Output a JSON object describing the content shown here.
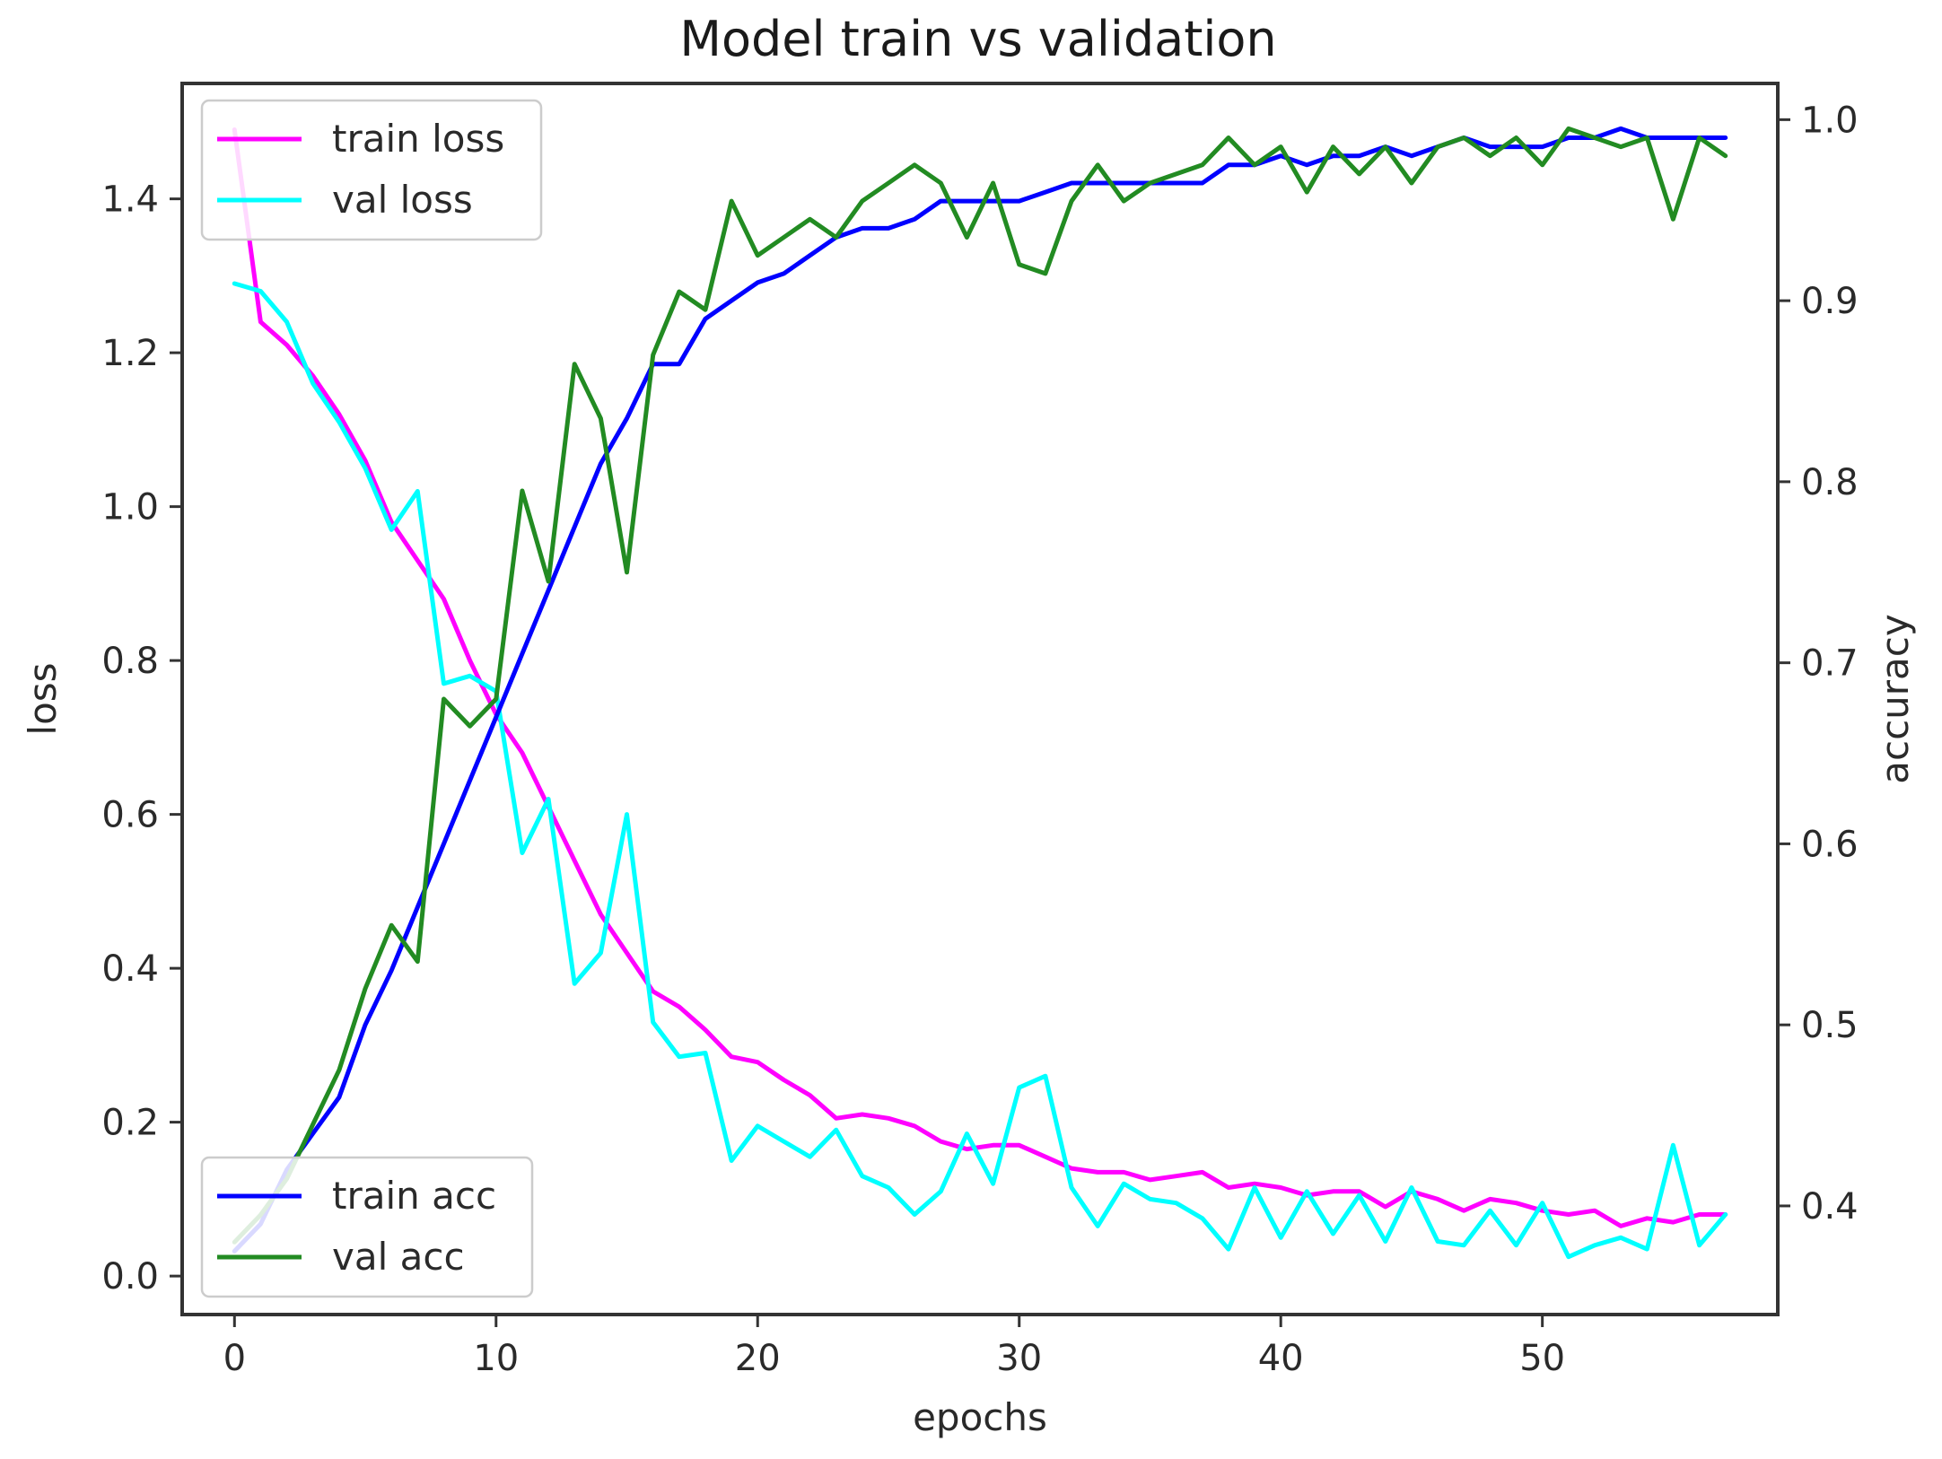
{
  "chart_data": {
    "type": "line",
    "title": "Model train vs validation",
    "xlabel": "epochs",
    "ylabel_left": "loss",
    "ylabel_right": "accuracy",
    "xlim": [
      -2,
      59
    ],
    "ylim_left": [
      -0.05,
      1.55
    ],
    "ylim_right": [
      0.34,
      1.02
    ],
    "x_ticks": [
      0,
      10,
      20,
      30,
      40,
      50
    ],
    "y_left_ticks": [
      0.0,
      0.2,
      0.4,
      0.6,
      0.8,
      1.0,
      1.2,
      1.4
    ],
    "y_right_ticks": [
      0.4,
      0.5,
      0.6,
      0.7,
      0.8,
      0.9,
      1.0
    ],
    "grid": false,
    "legends": [
      {
        "placement": "top-left",
        "entries": [
          "train loss",
          "val loss"
        ]
      },
      {
        "placement": "bottom-left",
        "entries": [
          "train acc",
          "val acc"
        ]
      }
    ],
    "x": [
      0,
      1,
      2,
      3,
      4,
      5,
      6,
      7,
      8,
      9,
      10,
      11,
      12,
      13,
      14,
      15,
      16,
      17,
      18,
      19,
      20,
      21,
      22,
      23,
      24,
      25,
      26,
      27,
      28,
      29,
      30,
      31,
      32,
      33,
      34,
      35,
      36,
      37,
      38,
      39,
      40,
      41,
      42,
      43,
      44,
      45,
      46,
      47,
      48,
      49,
      50,
      51,
      52,
      53,
      54,
      55,
      56,
      57
    ],
    "series": [
      {
        "name": "train loss",
        "axis": "left",
        "color": "#ff00ff",
        "values": [
          1.49,
          1.24,
          1.21,
          1.17,
          1.12,
          1.06,
          0.98,
          0.93,
          0.88,
          0.8,
          0.73,
          0.68,
          0.61,
          0.54,
          0.47,
          0.42,
          0.37,
          0.35,
          0.32,
          0.285,
          0.278,
          0.255,
          0.235,
          0.205,
          0.21,
          0.205,
          0.195,
          0.175,
          0.165,
          0.17,
          0.17,
          0.155,
          0.14,
          0.135,
          0.135,
          0.125,
          0.13,
          0.135,
          0.115,
          0.12,
          0.115,
          0.105,
          0.11,
          0.11,
          0.09,
          0.11,
          0.1,
          0.085,
          0.1,
          0.095,
          0.085,
          0.08,
          0.085,
          0.065,
          0.075,
          0.07,
          0.08,
          0.08
        ]
      },
      {
        "name": "val loss",
        "axis": "left",
        "color": "#00ffff",
        "values": [
          1.29,
          1.28,
          1.24,
          1.16,
          1.11,
          1.05,
          0.97,
          1.02,
          0.77,
          0.78,
          0.76,
          0.55,
          0.62,
          0.38,
          0.42,
          0.6,
          0.33,
          0.285,
          0.29,
          0.15,
          0.195,
          0.175,
          0.155,
          0.19,
          0.13,
          0.115,
          0.08,
          0.11,
          0.185,
          0.12,
          0.245,
          0.26,
          0.115,
          0.065,
          0.12,
          0.1,
          0.095,
          0.075,
          0.035,
          0.115,
          0.05,
          0.11,
          0.055,
          0.105,
          0.045,
          0.115,
          0.045,
          0.04,
          0.085,
          0.04,
          0.095,
          0.025,
          0.04,
          0.05,
          0.035,
          0.17,
          0.04,
          0.08
        ]
      },
      {
        "name": "train acc",
        "axis": "right",
        "color": "#0000ff",
        "values": [
          0.375,
          0.39,
          0.42,
          0.44,
          0.46,
          0.5,
          0.53,
          0.565,
          0.6,
          0.635,
          0.67,
          0.705,
          0.74,
          0.775,
          0.81,
          0.835,
          0.865,
          0.865,
          0.89,
          0.9,
          0.91,
          0.915,
          0.925,
          0.935,
          0.94,
          0.94,
          0.945,
          0.955,
          0.955,
          0.955,
          0.955,
          0.96,
          0.965,
          0.965,
          0.965,
          0.965,
          0.965,
          0.965,
          0.975,
          0.975,
          0.98,
          0.975,
          0.98,
          0.98,
          0.985,
          0.98,
          0.985,
          0.99,
          0.985,
          0.985,
          0.985,
          0.99,
          0.99,
          0.995,
          0.99,
          0.99,
          0.99,
          0.99
        ]
      },
      {
        "name": "val acc",
        "axis": "right",
        "color": "#228b22",
        "values": [
          0.38,
          0.395,
          0.415,
          0.445,
          0.475,
          0.52,
          0.555,
          0.535,
          0.68,
          0.665,
          0.68,
          0.795,
          0.745,
          0.865,
          0.835,
          0.75,
          0.87,
          0.905,
          0.895,
          0.955,
          0.925,
          0.935,
          0.945,
          0.935,
          0.955,
          0.965,
          0.975,
          0.965,
          0.935,
          0.965,
          0.92,
          0.915,
          0.955,
          0.975,
          0.955,
          0.965,
          0.97,
          0.975,
          0.99,
          0.975,
          0.985,
          0.96,
          0.985,
          0.97,
          0.985,
          0.965,
          0.985,
          0.99,
          0.98,
          0.99,
          0.975,
          0.995,
          0.99,
          0.985,
          0.99,
          0.945,
          0.99,
          0.98
        ]
      }
    ]
  }
}
